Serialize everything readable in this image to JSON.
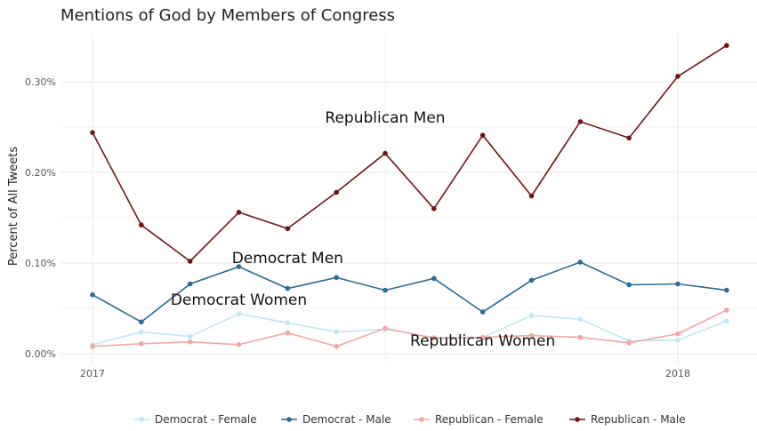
{
  "chart_data": {
    "type": "line",
    "title": "Mentions of God by Members of Congress",
    "xlabel": "",
    "ylabel": "Percent of All Tweets",
    "x": [
      "2017-01",
      "2017-02",
      "2017-03",
      "2017-04",
      "2017-05",
      "2017-06",
      "2017-07",
      "2017-08",
      "2017-09",
      "2017-10",
      "2017-11",
      "2017-12",
      "2018-01",
      "2018-02"
    ],
    "x_ticks": [
      {
        "value": "2017-01",
        "label": "2017"
      },
      {
        "value": "2018-01",
        "label": "2018"
      }
    ],
    "ylim": [
      0,
      0.35
    ],
    "y_ticks": [
      {
        "value": 0.0,
        "label": "0.00%"
      },
      {
        "value": 0.1,
        "label": "0.10%"
      },
      {
        "value": 0.2,
        "label": "0.20%"
      },
      {
        "value": 0.3,
        "label": "0.30%"
      }
    ],
    "grid": true,
    "legend_position": "bottom",
    "series": [
      {
        "name": "Democrat - Female",
        "color": "#bfe6f5",
        "values": [
          0.01,
          0.024,
          0.019,
          0.044,
          0.034,
          0.024,
          0.027,
          0.018,
          0.018,
          0.042,
          0.038,
          0.014,
          0.015,
          0.036
        ]
      },
      {
        "name": "Democrat - Male",
        "color": "#2b6a94",
        "values": [
          0.065,
          0.035,
          0.077,
          0.096,
          0.072,
          0.084,
          0.07,
          0.083,
          0.046,
          0.081,
          0.101,
          0.076,
          0.077,
          0.07
        ]
      },
      {
        "name": "Republican - Female",
        "color": "#f4a6a0",
        "values": [
          0.008,
          0.011,
          0.013,
          0.01,
          0.023,
          0.008,
          0.028,
          0.017,
          0.018,
          0.02,
          0.018,
          0.012,
          0.022,
          0.048
        ]
      },
      {
        "name": "Republican - Male",
        "color": "#6e1414",
        "values": [
          0.244,
          0.142,
          0.102,
          0.156,
          0.138,
          0.178,
          0.221,
          0.16,
          0.241,
          0.174,
          0.256,
          0.238,
          0.306,
          0.34
        ]
      }
    ],
    "annotations": [
      {
        "text": "Republican Men",
        "x": "2017-07",
        "y": 0.255
      },
      {
        "text": "Democrat Men",
        "x": "2017-05",
        "y": 0.1
      },
      {
        "text": "Democrat Women",
        "x": "2017-04",
        "y": 0.054
      },
      {
        "text": "Republican Women",
        "x": "2017-09",
        "y": 0.009
      }
    ]
  }
}
